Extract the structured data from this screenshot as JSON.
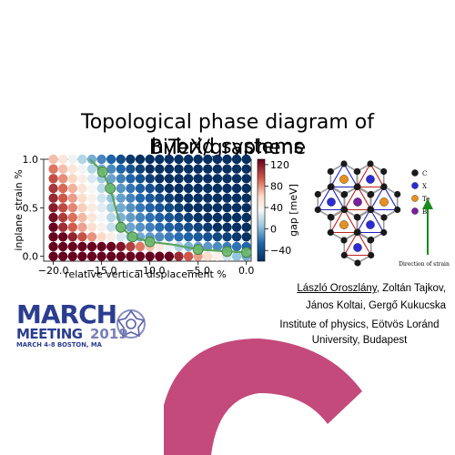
{
  "title_line1": "Topological phase diagram of BiTeX/graphene",
  "title_line2": "hybrid systems",
  "chart_data": {
    "type": "scatter",
    "xlabel": "relative vertical displacement %",
    "ylabel": "inplane strain %",
    "x_ticks": [
      "-20.0",
      "-15.0",
      "-10.0",
      "-5.0",
      "0.0"
    ],
    "y_ticks": [
      "0.0",
      "0.5",
      "1.0"
    ],
    "xlim": [
      -21,
      0.5
    ],
    "ylim": [
      -0.05,
      1.0
    ],
    "colorbar_label": "gap [meV]",
    "colorbar_ticks": [
      "120",
      "80",
      "40",
      "0",
      "−40"
    ],
    "colorbar_range": [
      -60,
      130
    ],
    "grid_x_range": [
      -20,
      0
    ],
    "grid_x_count": 21,
    "grid_y_range": [
      0,
      1
    ],
    "grid_y_count": 11,
    "phase_boundary": {
      "x": [
        -16.2,
        -14.9,
        -14.1,
        -13.0,
        -11.8,
        -10.0,
        -7.5,
        -5.0,
        -2.0,
        0.0
      ],
      "y": [
        1.0,
        0.87,
        0.7,
        0.3,
        0.2,
        0.15,
        0.12,
        0.07,
        0.05,
        0.04
      ],
      "markers_x": [
        -14.9,
        -14.1,
        -13.0,
        -11.8,
        -10.0,
        -5.0,
        -2.0,
        0.0
      ],
      "markers_y": [
        0.87,
        0.7,
        0.3,
        0.2,
        0.15,
        0.07,
        0.05,
        0.04
      ]
    }
  },
  "structure_legend": [
    {
      "label": "C",
      "color": "#1a1a1a"
    },
    {
      "label": "X",
      "color": "#2b2bd6"
    },
    {
      "label": "Te",
      "color": "#e8901e"
    },
    {
      "label": "Bi",
      "color": "#7a1fa0"
    }
  ],
  "arrow_label": "Direction of strain",
  "authors_line1_underlined": "László Oroszlány",
  "authors_line1_rest": ", Zoltán Tajkov,",
  "authors_line2": "János Koltai, Gergő Kukucska",
  "institute": "Institute of physics, Eötvös Loránd University, Budapest",
  "march_word": "MARCH",
  "meeting_word": "MEETING",
  "meeting_year": "2019",
  "march_sub": "MARCH 4-8 BOSTON, MA",
  "colors": {
    "accent_pink": "#c44a7c",
    "march_blue": "#2a3d90",
    "boundary_green": "#5aa35a"
  }
}
